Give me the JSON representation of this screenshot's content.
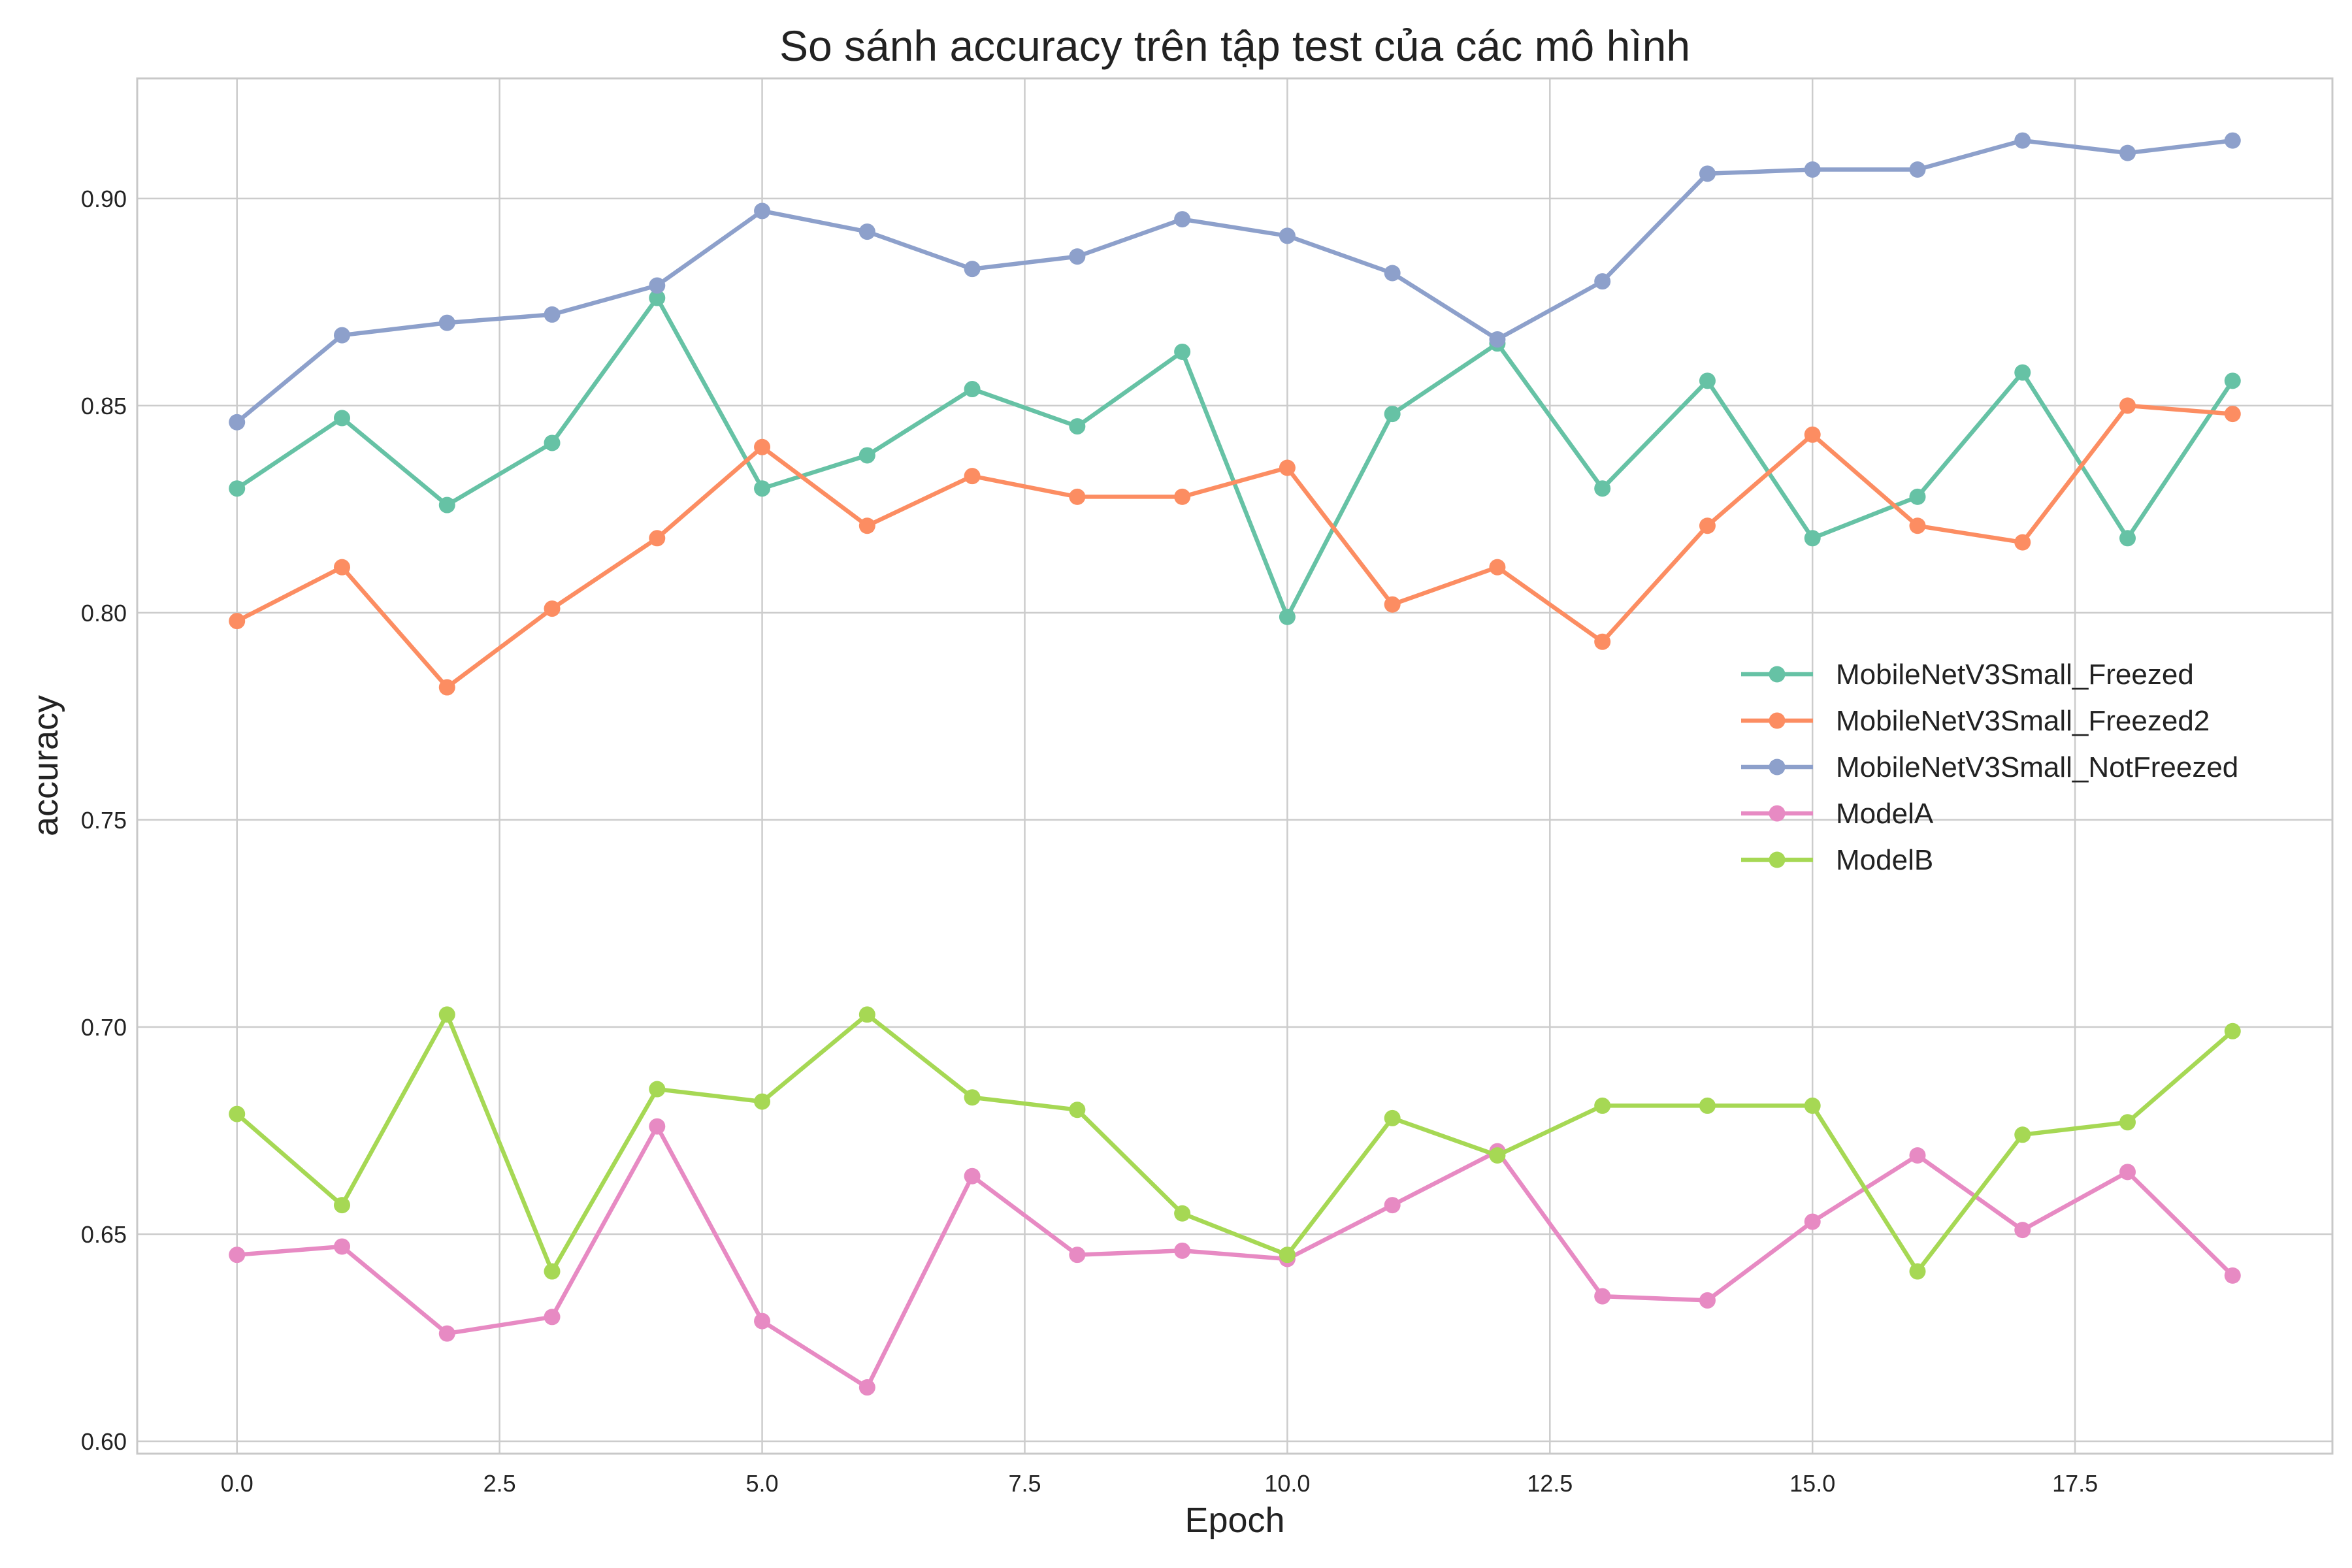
{
  "chart_data": {
    "type": "line",
    "title": "So sánh accuracy trên tập test của các mô hình",
    "xlabel": "Epoch",
    "ylabel": "accuracy",
    "xlim": [
      -0.95,
      19.95
    ],
    "ylim": [
      0.597,
      0.929
    ],
    "x_ticks": [
      0.0,
      2.5,
      5.0,
      7.5,
      10.0,
      12.5,
      15.0,
      17.5
    ],
    "x_tick_labels": [
      "0.0",
      "2.5",
      "5.0",
      "7.5",
      "10.0",
      "12.5",
      "15.0",
      "17.5"
    ],
    "y_ticks": [
      0.6,
      0.65,
      0.7,
      0.75,
      0.8,
      0.85,
      0.9
    ],
    "y_tick_labels": [
      "0.60",
      "0.65",
      "0.70",
      "0.75",
      "0.80",
      "0.85",
      "0.90"
    ],
    "grid": true,
    "legend_position": "center-right",
    "x": [
      0,
      1,
      2,
      3,
      4,
      5,
      6,
      7,
      8,
      9,
      10,
      11,
      12,
      13,
      14,
      15,
      16,
      17,
      18,
      19
    ],
    "series": [
      {
        "name": "MobileNetV3Small_Freezed",
        "color": "#66c2a5",
        "values": [
          0.83,
          0.847,
          0.826,
          0.841,
          0.876,
          0.83,
          0.838,
          0.854,
          0.845,
          0.863,
          0.799,
          0.848,
          0.865,
          0.83,
          0.856,
          0.818,
          0.828,
          0.858,
          0.818,
          0.856
        ]
      },
      {
        "name": "MobileNetV3Small_Freezed2",
        "color": "#fc8d62",
        "values": [
          0.798,
          0.811,
          0.782,
          0.801,
          0.818,
          0.84,
          0.821,
          0.833,
          0.828,
          0.828,
          0.835,
          0.802,
          0.811,
          0.793,
          0.821,
          0.843,
          0.821,
          0.817,
          0.85,
          0.848
        ]
      },
      {
        "name": "MobileNetV3Small_NotFreezed",
        "color": "#8da0cb",
        "values": [
          0.846,
          0.867,
          0.87,
          0.872,
          0.879,
          0.897,
          0.892,
          0.883,
          0.886,
          0.895,
          0.891,
          0.882,
          0.866,
          0.88,
          0.906,
          0.907,
          0.907,
          0.914,
          0.911,
          0.914
        ]
      },
      {
        "name": "ModelA",
        "color": "#e78ac3",
        "values": [
          0.645,
          0.647,
          0.626,
          0.63,
          0.676,
          0.629,
          0.613,
          0.664,
          0.645,
          0.646,
          0.644,
          0.657,
          0.67,
          0.635,
          0.634,
          0.653,
          0.669,
          0.651,
          0.665,
          0.64
        ]
      },
      {
        "name": "ModelB",
        "color": "#a6d854",
        "values": [
          0.679,
          0.657,
          0.703,
          0.641,
          0.685,
          0.682,
          0.703,
          0.683,
          0.68,
          0.655,
          0.645,
          0.678,
          0.669,
          0.681,
          0.681,
          0.681,
          0.641,
          0.674,
          0.677,
          0.699
        ]
      }
    ]
  }
}
